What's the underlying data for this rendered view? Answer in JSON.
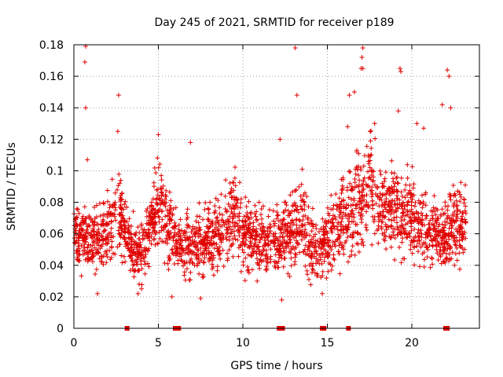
{
  "chart_data": {
    "type": "scatter",
    "title": "Day 245 of 2021, SRMTID for receiver p189",
    "xlabel": "GPS time / hours",
    "ylabel": "SRMTID / TECUs",
    "xlim": [
      0,
      24
    ],
    "ylim": [
      0,
      0.18
    ],
    "x_ticks": [
      0,
      5,
      10,
      15,
      20
    ],
    "x_tick_labels": [
      "0",
      "5",
      "10",
      "15",
      "20"
    ],
    "y_ticks": [
      0,
      0.02,
      0.04,
      0.06,
      0.08,
      0.1,
      0.12,
      0.14,
      0.16,
      0.18
    ],
    "y_tick_labels": [
      "0",
      "0.02",
      "0.04",
      "0.06",
      "0.08",
      "0.1",
      "0.12",
      "0.14",
      "0.16",
      "0.18"
    ],
    "grid": true,
    "marker": "+",
    "color": "#e00000",
    "series": [
      {
        "name": "SRMTID",
        "x_range": [
          0,
          23.2
        ],
        "n_points": 2600,
        "profile_hours": [
          0,
          1,
          2,
          2.5,
          3,
          3.5,
          4,
          4.5,
          5,
          5.5,
          6,
          6.5,
          7,
          8,
          9,
          9.5,
          10,
          11,
          12,
          12.5,
          13,
          13.5,
          14,
          14.5,
          15,
          15.5,
          16,
          16.5,
          17,
          17.5,
          18,
          19,
          20,
          21,
          22,
          22.5,
          23.2
        ],
        "median_tecu": [
          0.06,
          0.055,
          0.06,
          0.075,
          0.065,
          0.05,
          0.045,
          0.065,
          0.08,
          0.07,
          0.055,
          0.05,
          0.055,
          0.055,
          0.065,
          0.075,
          0.06,
          0.055,
          0.055,
          0.06,
          0.065,
          0.07,
          0.055,
          0.05,
          0.055,
          0.065,
          0.07,
          0.075,
          0.085,
          0.095,
          0.08,
          0.075,
          0.07,
          0.06,
          0.06,
          0.065,
          0.065
        ],
        "spread_tecu": [
          0.014,
          0.014,
          0.016,
          0.018,
          0.016,
          0.014,
          0.014,
          0.016,
          0.02,
          0.018,
          0.016,
          0.014,
          0.015,
          0.015,
          0.018,
          0.02,
          0.016,
          0.015,
          0.015,
          0.016,
          0.018,
          0.02,
          0.016,
          0.014,
          0.015,
          0.018,
          0.02,
          0.022,
          0.025,
          0.028,
          0.022,
          0.02,
          0.02,
          0.018,
          0.018,
          0.02,
          0.02
        ],
        "outliers": [
          [
            0.7,
            0.179
          ],
          [
            0.65,
            0.169
          ],
          [
            0.7,
            0.14
          ],
          [
            0.8,
            0.107
          ],
          [
            2.65,
            0.148
          ],
          [
            2.6,
            0.125
          ],
          [
            5.0,
            0.123
          ],
          [
            5.8,
            0.02
          ],
          [
            6.9,
            0.118
          ],
          [
            13.1,
            0.178
          ],
          [
            13.2,
            0.148
          ],
          [
            12.2,
            0.12
          ],
          [
            16.3,
            0.148
          ],
          [
            16.6,
            0.15
          ],
          [
            17.0,
            0.165
          ],
          [
            17.1,
            0.178
          ],
          [
            17.05,
            0.172
          ],
          [
            17.1,
            0.165
          ],
          [
            19.3,
            0.165
          ],
          [
            19.35,
            0.163
          ],
          [
            22.1,
            0.164
          ],
          [
            22.2,
            0.16
          ],
          [
            21.8,
            0.142
          ],
          [
            22.3,
            0.14
          ],
          [
            16.2,
            0.128
          ],
          [
            17.8,
            0.13
          ],
          [
            12.3,
            0.018
          ],
          [
            7.5,
            0.019
          ],
          [
            3.8,
            0.022
          ],
          [
            14.7,
            0.022
          ],
          [
            1.4,
            0.022
          ],
          [
            20.3,
            0.13
          ],
          [
            20.7,
            0.127
          ],
          [
            19.2,
            0.138
          ]
        ]
      },
      {
        "name": "zero markers",
        "points": [
          [
            3.15,
            0
          ],
          [
            6.0,
            0
          ],
          [
            6.1,
            0
          ],
          [
            6.2,
            0
          ],
          [
            12.15,
            0
          ],
          [
            12.25,
            0
          ],
          [
            12.35,
            0
          ],
          [
            14.7,
            0
          ],
          [
            14.8,
            0
          ],
          [
            16.25,
            0
          ],
          [
            22.0,
            0
          ],
          [
            22.1,
            0
          ]
        ]
      }
    ]
  }
}
